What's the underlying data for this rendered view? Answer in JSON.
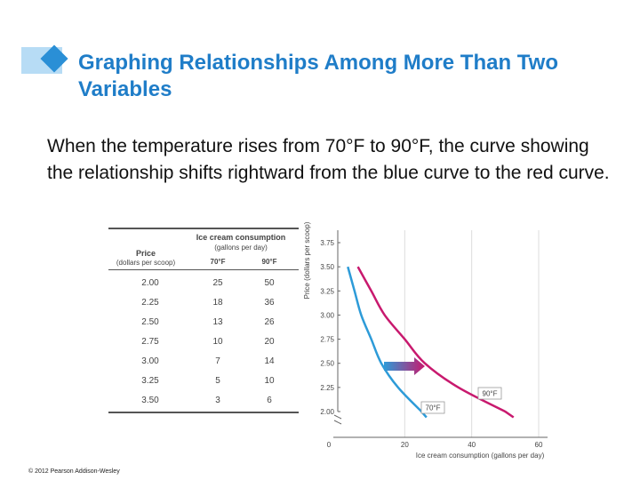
{
  "slide": {
    "title": "Graphing Relationships Among More Than Two Variables",
    "body": "When the temperature rises from 70°F to 90°F, the curve showing the relationship shifts rightward from the blue curve to the red curve.",
    "copyright": "© 2012 Pearson Addison-Wesley",
    "accent_color": "#1f7dc8"
  },
  "table": {
    "group_header": "Ice cream consumption",
    "group_subheader": "(gallons per day)",
    "price_header": "Price",
    "price_subheader": "(dollars per scoop)",
    "col_70": "70°F",
    "col_90": "90°F",
    "rows": [
      {
        "price": "2.00",
        "c70": "25",
        "c90": "50"
      },
      {
        "price": "2.25",
        "c70": "18",
        "c90": "36"
      },
      {
        "price": "2.50",
        "c70": "13",
        "c90": "26"
      },
      {
        "price": "2.75",
        "c70": "10",
        "c90": "20"
      },
      {
        "price": "3.00",
        "c70": "7",
        "c90": "14"
      },
      {
        "price": "3.25",
        "c70": "5",
        "c90": "10"
      },
      {
        "price": "3.50",
        "c70": "3",
        "c90": "6"
      }
    ]
  },
  "chart_data": {
    "type": "line",
    "title": "",
    "xlabel": "Ice cream consumption (gallons per day)",
    "ylabel": "Price (dollars per scoop)",
    "xlim": [
      0,
      60
    ],
    "ylim": [
      2.0,
      3.75
    ],
    "x_ticks": [
      "0",
      "20",
      "40",
      "60"
    ],
    "y_ticks": [
      "2.00",
      "2.25",
      "2.50",
      "2.75",
      "3.00",
      "3.25",
      "3.50",
      "3.75"
    ],
    "series": [
      {
        "name": "70°F",
        "color": "#2d9bd8",
        "x": [
          3,
          5,
          7,
          10,
          13,
          18,
          25
        ],
        "y": [
          3.5,
          3.25,
          3.0,
          2.75,
          2.5,
          2.25,
          2.0
        ]
      },
      {
        "name": "90°F",
        "color": "#c8196e",
        "x": [
          6,
          10,
          14,
          20,
          26,
          36,
          50
        ],
        "y": [
          3.5,
          3.25,
          3.0,
          2.75,
          2.5,
          2.25,
          2.0
        ]
      }
    ],
    "shift_arrow": {
      "from_color": "#2d9bd8",
      "to_color": "#c8196e",
      "direction": "rightward"
    }
  }
}
